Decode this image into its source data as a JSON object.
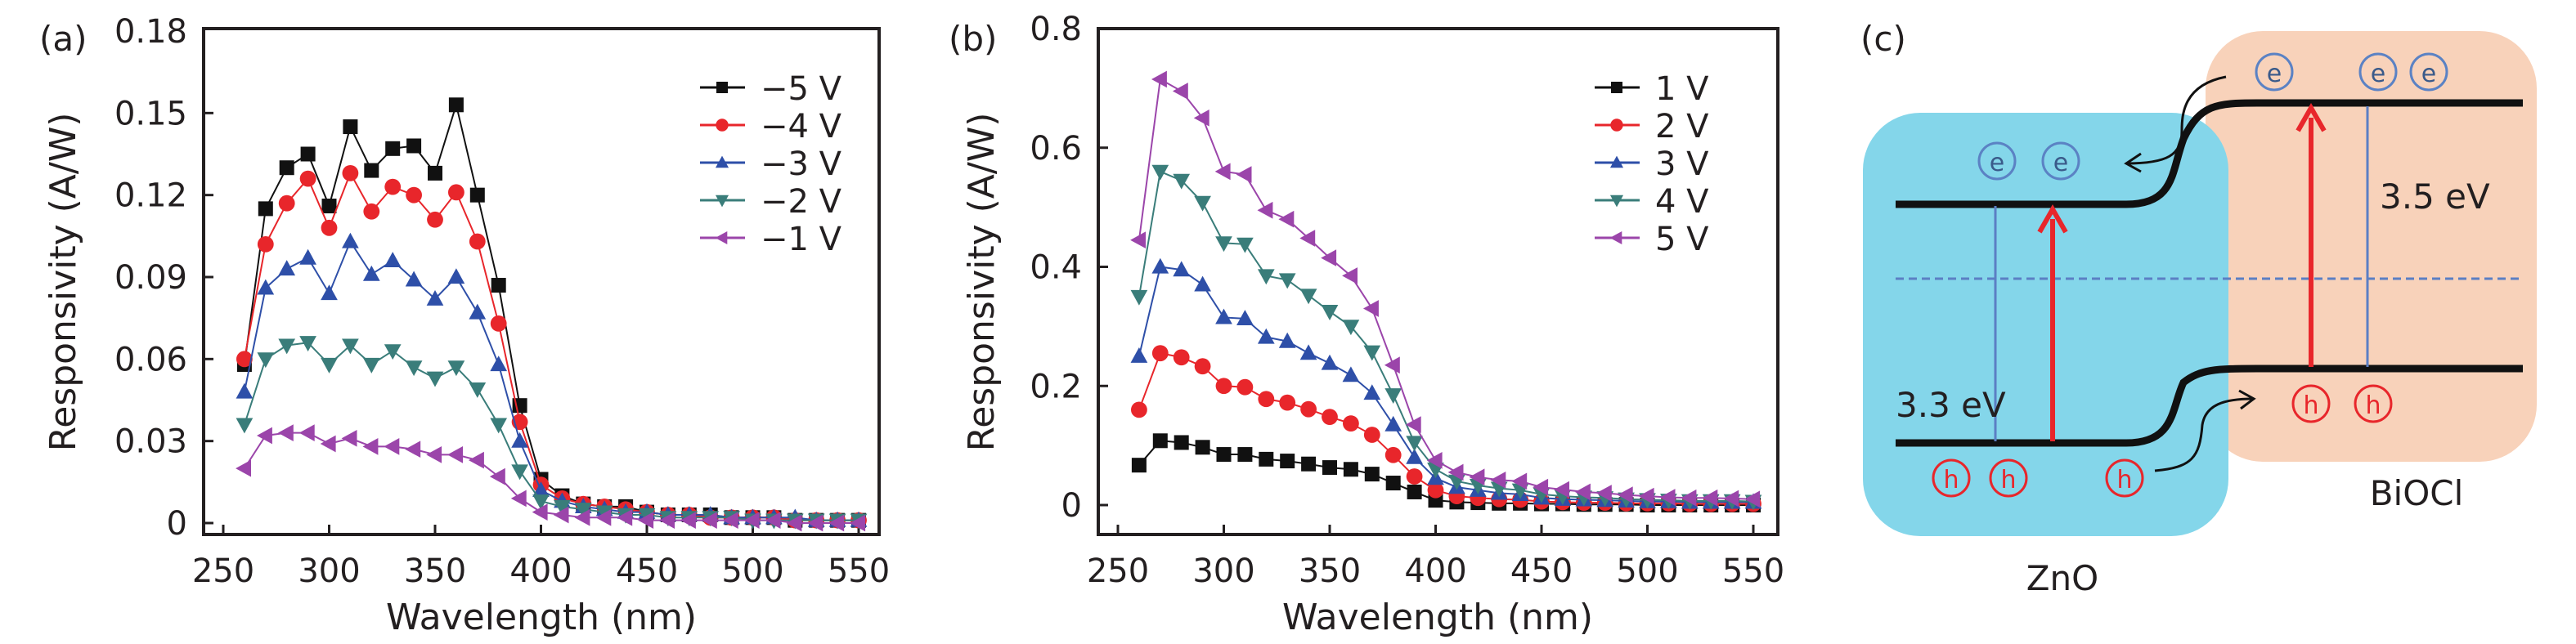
{
  "chart_data": [
    {
      "panel": "(a)",
      "type": "line",
      "title": "",
      "xlabel": "Wavelength (nm)",
      "ylabel": "Responsivity (A/W)",
      "xlim": [
        240,
        560
      ],
      "ylim": [
        -0.003,
        0.18
      ],
      "xticks": [
        250,
        300,
        350,
        400,
        450,
        500,
        550
      ],
      "yticks": [
        0,
        0.03,
        0.06,
        0.09,
        0.12,
        0.15,
        0.18
      ],
      "ytick_labels": [
        "0",
        "0.03",
        "0.06",
        "0.09",
        "0.12",
        "0.15",
        "0.18"
      ],
      "legend_position": "top-right",
      "grid": false,
      "x": [
        260,
        270,
        280,
        290,
        300,
        310,
        320,
        330,
        340,
        350,
        360,
        370,
        380,
        390,
        400,
        410,
        420,
        430,
        440,
        450,
        460,
        470,
        480,
        490,
        500,
        510,
        520,
        530,
        540,
        550
      ],
      "series": [
        {
          "name": "−5 V",
          "color": "#111111",
          "marker": "square",
          "values": [
            0.058,
            0.115,
            0.13,
            0.135,
            0.116,
            0.145,
            0.129,
            0.137,
            0.138,
            0.128,
            0.153,
            0.12,
            0.087,
            0.043,
            0.016,
            0.01,
            0.007,
            0.006,
            0.006,
            0.004,
            0.003,
            0.003,
            0.003,
            0.002,
            0.002,
            0.002,
            0.001,
            0.001,
            0.001,
            0.001
          ]
        },
        {
          "name": "−4 V",
          "color": "#e8262b",
          "marker": "circle",
          "values": [
            0.06,
            0.102,
            0.117,
            0.126,
            0.108,
            0.128,
            0.114,
            0.123,
            0.12,
            0.111,
            0.121,
            0.103,
            0.073,
            0.037,
            0.014,
            0.009,
            0.007,
            0.006,
            0.005,
            0.004,
            0.003,
            0.003,
            0.002,
            0.002,
            0.002,
            0.002,
            0.001,
            0.001,
            0.001,
            0.001
          ]
        },
        {
          "name": "−3 V",
          "color": "#2e4fa8",
          "marker": "triangle-up",
          "values": [
            0.048,
            0.086,
            0.093,
            0.097,
            0.084,
            0.103,
            0.091,
            0.096,
            0.089,
            0.082,
            0.09,
            0.077,
            0.058,
            0.03,
            0.012,
            0.008,
            0.006,
            0.005,
            0.004,
            0.004,
            0.003,
            0.003,
            0.003,
            0.002,
            0.002,
            0.002,
            0.002,
            0.001,
            0.001,
            0.001
          ]
        },
        {
          "name": "−2 V",
          "color": "#3a7d7a",
          "marker": "triangle-down",
          "values": [
            0.036,
            0.06,
            0.065,
            0.066,
            0.058,
            0.065,
            0.058,
            0.063,
            0.057,
            0.053,
            0.057,
            0.049,
            0.036,
            0.019,
            0.008,
            0.006,
            0.005,
            0.004,
            0.003,
            0.003,
            0.002,
            0.002,
            0.002,
            0.002,
            0.001,
            0.001,
            0.001,
            0.001,
            0.001,
            0.001
          ]
        },
        {
          "name": "−1 V",
          "color": "#9b45aa",
          "marker": "triangle-left",
          "values": [
            0.02,
            0.032,
            0.033,
            0.033,
            0.029,
            0.031,
            0.028,
            0.028,
            0.027,
            0.025,
            0.025,
            0.023,
            0.017,
            0.009,
            0.004,
            0.003,
            0.002,
            0.002,
            0.002,
            0.001,
            0.001,
            0.001,
            0.001,
            0.001,
            0.001,
            0.001,
            0.0,
            0.0,
            0.0,
            0.0
          ]
        }
      ]
    },
    {
      "panel": "(b)",
      "type": "line",
      "title": "",
      "xlabel": "Wavelength (nm)",
      "ylabel": "Responsivity (A/W)",
      "xlim": [
        240,
        560
      ],
      "ylim": [
        -0.05,
        0.8
      ],
      "xticks": [
        250,
        300,
        350,
        400,
        450,
        500,
        550
      ],
      "yticks": [
        0,
        0.2,
        0.4,
        0.6,
        0.8
      ],
      "ytick_labels": [
        "0",
        "0.2",
        "0.4",
        "0.6",
        "0.8"
      ],
      "legend_position": "top-right",
      "grid": false,
      "x": [
        260,
        270,
        280,
        290,
        300,
        310,
        320,
        330,
        340,
        350,
        360,
        370,
        380,
        390,
        400,
        410,
        420,
        430,
        440,
        450,
        460,
        470,
        480,
        490,
        500,
        510,
        520,
        530,
        540,
        550
      ],
      "series": [
        {
          "name": "1 V",
          "color": "#111111",
          "marker": "square",
          "values": [
            0.067,
            0.108,
            0.105,
            0.097,
            0.085,
            0.085,
            0.077,
            0.074,
            0.069,
            0.063,
            0.06,
            0.052,
            0.037,
            0.022,
            0.008,
            0.005,
            0.004,
            0.003,
            0.003,
            0.002,
            0.002,
            0.001,
            0.001,
            0.001,
            0.0,
            0.0,
            0.0,
            0.0,
            0.0,
            0.0
          ]
        },
        {
          "name": "2 V",
          "color": "#e8262b",
          "marker": "circle",
          "values": [
            0.16,
            0.255,
            0.248,
            0.233,
            0.2,
            0.198,
            0.178,
            0.172,
            0.161,
            0.148,
            0.137,
            0.118,
            0.084,
            0.048,
            0.025,
            0.015,
            0.012,
            0.01,
            0.009,
            0.006,
            0.005,
            0.004,
            0.004,
            0.003,
            0.003,
            0.003,
            0.002,
            0.002,
            0.002,
            0.002
          ]
        },
        {
          "name": "3 V",
          "color": "#2e4fa8",
          "marker": "triangle-up",
          "values": [
            0.25,
            0.4,
            0.395,
            0.37,
            0.315,
            0.313,
            0.282,
            0.275,
            0.255,
            0.238,
            0.218,
            0.188,
            0.135,
            0.08,
            0.045,
            0.03,
            0.025,
            0.02,
            0.018,
            0.012,
            0.01,
            0.009,
            0.008,
            0.007,
            0.006,
            0.006,
            0.005,
            0.005,
            0.005,
            0.005
          ]
        },
        {
          "name": "4 V",
          "color": "#3a7d7a",
          "marker": "triangle-down",
          "values": [
            0.35,
            0.56,
            0.545,
            0.508,
            0.44,
            0.438,
            0.385,
            0.378,
            0.352,
            0.325,
            0.3,
            0.257,
            0.185,
            0.105,
            0.06,
            0.04,
            0.033,
            0.028,
            0.025,
            0.018,
            0.015,
            0.013,
            0.012,
            0.01,
            0.009,
            0.008,
            0.007,
            0.007,
            0.007,
            0.006
          ]
        },
        {
          "name": "5 V",
          "color": "#9b45aa",
          "marker": "triangle-left",
          "values": [
            0.445,
            0.715,
            0.695,
            0.65,
            0.56,
            0.555,
            0.495,
            0.48,
            0.448,
            0.415,
            0.385,
            0.33,
            0.235,
            0.135,
            0.075,
            0.055,
            0.047,
            0.042,
            0.04,
            0.03,
            0.026,
            0.022,
            0.02,
            0.017,
            0.015,
            0.013,
            0.012,
            0.012,
            0.011,
            0.01
          ]
        }
      ]
    }
  ],
  "diagram": {
    "panel_label": "(c)",
    "materials": [
      {
        "name": "ZnO",
        "bandgap_label": "3.3 eV",
        "color": "#84d6ea",
        "electrons": [
          "e",
          "e"
        ],
        "holes": [
          "h",
          "h",
          "h"
        ]
      },
      {
        "name": "BiOCl",
        "bandgap_label": "3.5 eV",
        "color": "#f8d2ba",
        "electrons": [
          "e",
          "e",
          "e"
        ],
        "holes": [
          "h",
          "h"
        ]
      }
    ],
    "colors": {
      "electron": "#5b82c4",
      "electron_text": "#3a5a8a",
      "hole": "#e8262b",
      "band": "#111111",
      "fermi": "#5b7fc4",
      "excitation": "#e8262b"
    }
  },
  "labels": {
    "a": "(a)",
    "b": "(b)"
  }
}
